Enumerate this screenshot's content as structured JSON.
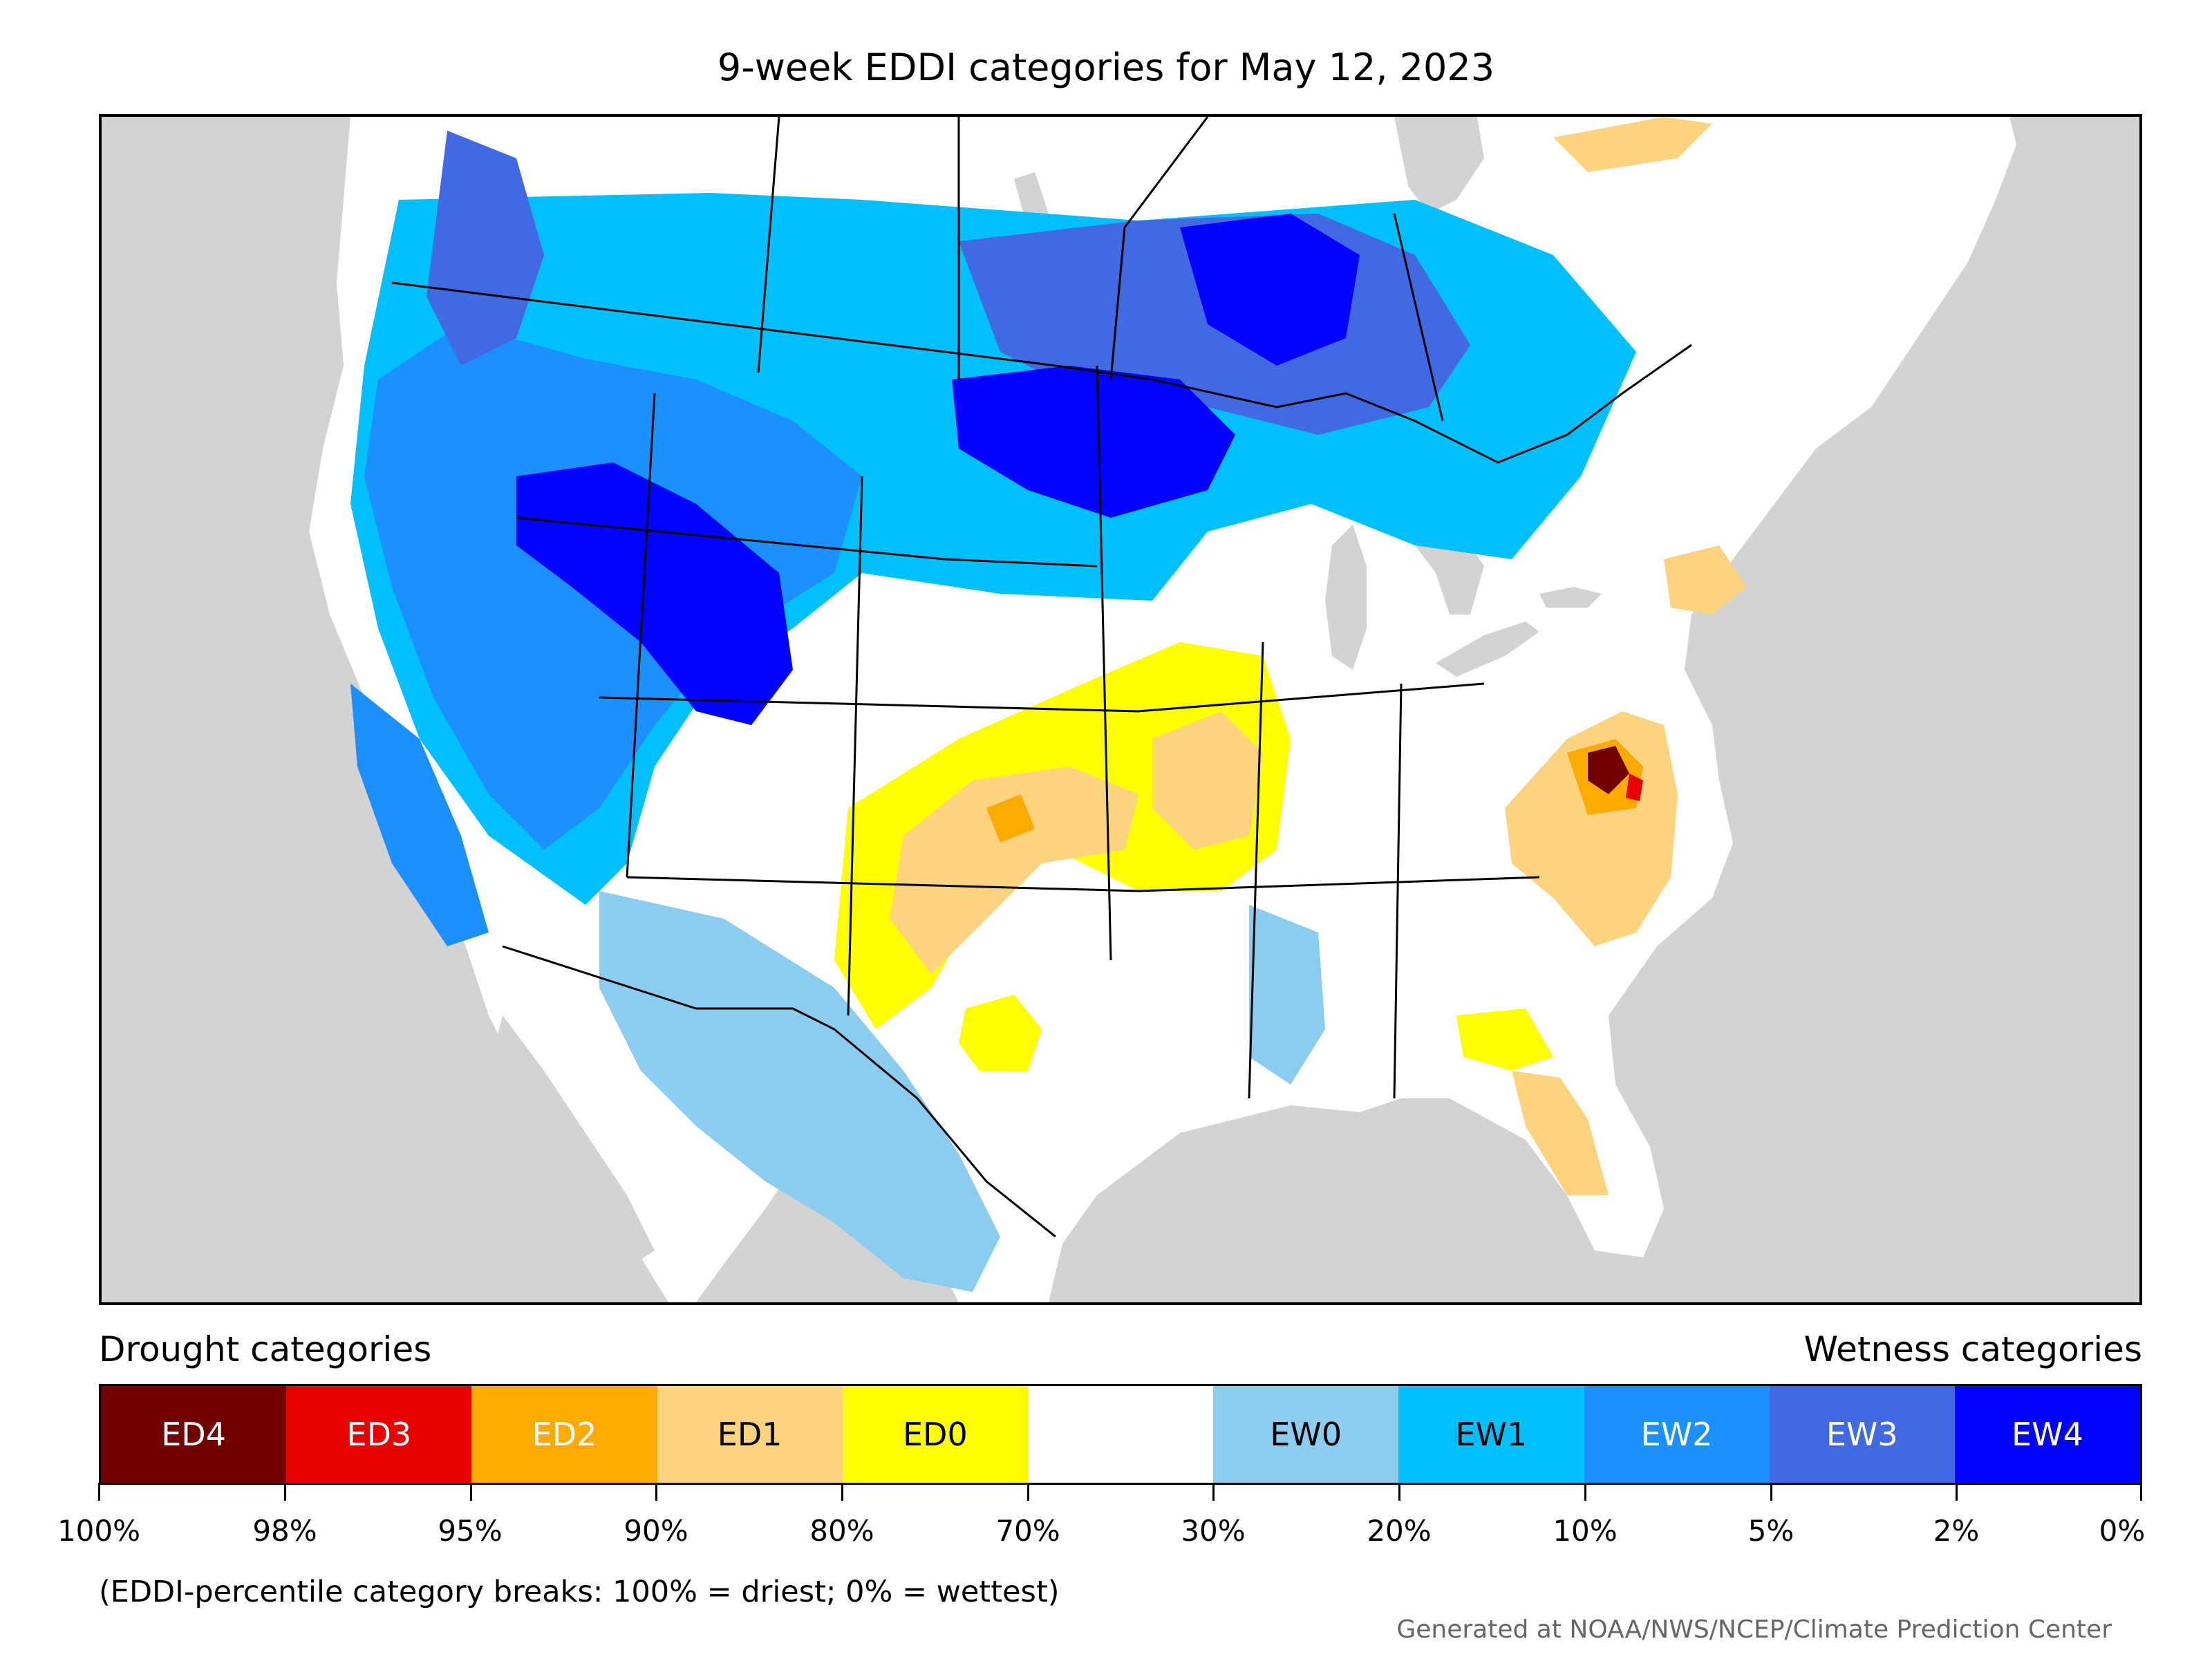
{
  "title": "9-week EDDI categories for May 12, 2023",
  "legend": {
    "drought_heading": "Drought categories",
    "wetness_heading": "Wetness categories",
    "categories": [
      {
        "label": "ED4",
        "color": "#730000",
        "text_color": "#ffffff"
      },
      {
        "label": "ED3",
        "color": "#e60000",
        "text_color": "#ffffff"
      },
      {
        "label": "ED2",
        "color": "#ffaa00",
        "text_color": "#ffffff"
      },
      {
        "label": "ED1",
        "color": "#fcd37f",
        "text_color": "#000000"
      },
      {
        "label": "ED0",
        "color": "#ffff00",
        "text_color": "#000000"
      },
      {
        "label": "",
        "color": "#ffffff",
        "text_color": "#000000"
      },
      {
        "label": "EW0",
        "color": "#8ccdef",
        "text_color": "#000000"
      },
      {
        "label": "EW1",
        "color": "#00bfff",
        "text_color": "#000000"
      },
      {
        "label": "EW2",
        "color": "#1d90ff",
        "text_color": "#ffffff"
      },
      {
        "label": "EW3",
        "color": "#4169e1",
        "text_color": "#ffffff"
      },
      {
        "label": "EW4",
        "color": "#0000ff",
        "text_color": "#ffffff"
      }
    ],
    "tick_labels": [
      "100%",
      "98%",
      "95%",
      "90%",
      "80%",
      "70%",
      "30%",
      "20%",
      "10%",
      "5%",
      "2%",
      "0%"
    ]
  },
  "footnote": "(EDDI-percentile category breaks: 100% = driest; 0% = wettest)",
  "credit": "Generated at NOAA/NWS/NCEP/Climate Prediction Center",
  "map_colors": {
    "ocean": "#d3d3d3",
    "land": "#ffffff",
    "boundary": "#000000"
  }
}
